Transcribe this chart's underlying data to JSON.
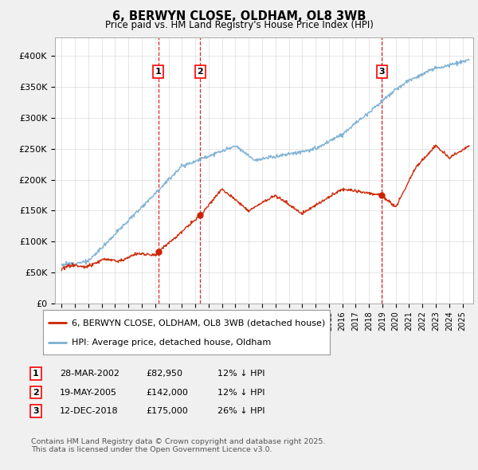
{
  "title": "6, BERWYN CLOSE, OLDHAM, OL8 3WB",
  "subtitle": "Price paid vs. HM Land Registry's House Price Index (HPI)",
  "background_color": "#f0f0f0",
  "plot_bg_color": "#ffffff",
  "ylabel_ticks": [
    "£0",
    "£50K",
    "£100K",
    "£150K",
    "£200K",
    "£250K",
    "£300K",
    "£350K",
    "£400K"
  ],
  "ytick_values": [
    0,
    50000,
    100000,
    150000,
    200000,
    250000,
    300000,
    350000,
    400000
  ],
  "ylim": [
    0,
    430000
  ],
  "xlim_start": 1994.5,
  "xlim_end": 2025.8,
  "sale_dates": [
    2002.24,
    2005.38,
    2018.95
  ],
  "sale_prices": [
    82950,
    142000,
    175000
  ],
  "sale_labels": [
    "1",
    "2",
    "3"
  ],
  "hpi_color": "#7ab0d4",
  "price_color": "#cc2200",
  "legend_entries": [
    "6, BERWYN CLOSE, OLDHAM, OL8 3WB (detached house)",
    "HPI: Average price, detached house, Oldham"
  ],
  "table_rows": [
    [
      "1",
      "28-MAR-2002",
      "£82,950",
      "12% ↓ HPI"
    ],
    [
      "2",
      "19-MAY-2005",
      "£142,000",
      "12% ↓ HPI"
    ],
    [
      "3",
      "12-DEC-2018",
      "£175,000",
      "26% ↓ HPI"
    ]
  ],
  "footer": "Contains HM Land Registry data © Crown copyright and database right 2025.\nThis data is licensed under the Open Government Licence v3.0."
}
